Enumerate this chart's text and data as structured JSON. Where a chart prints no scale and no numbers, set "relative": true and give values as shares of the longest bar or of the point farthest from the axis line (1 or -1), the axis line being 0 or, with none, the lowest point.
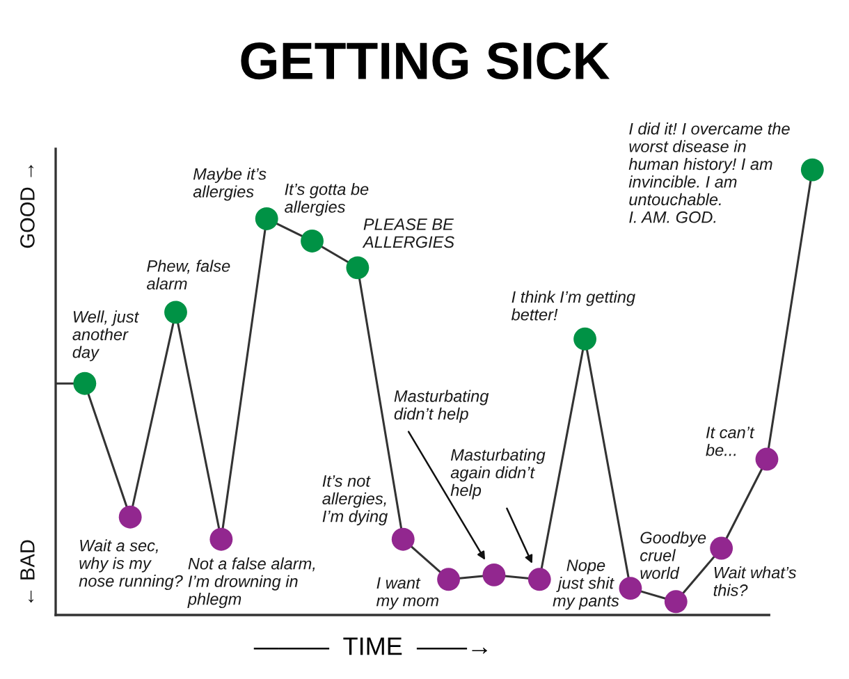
{
  "chart_data": {
    "type": "line",
    "title": "GETTING SICK",
    "xlabel": "———  TIME  ——→",
    "categories": [
      null,
      null,
      null,
      null,
      null,
      null,
      null,
      null,
      null,
      null,
      null,
      null,
      null,
      null,
      null,
      null,
      null
    ],
    "relative": true,
    "marker": "circle",
    "line_style": "solid",
    "series": [
      {
        "color": "#333333",
        "colors": [
          "#009245",
          "#92278f",
          "#009245",
          "#92278f",
          "#009245",
          "#009245",
          "#009245",
          "#92278f",
          "#92278f",
          "#92278f",
          "#92278f",
          "#009245",
          "#92278f",
          "#92278f",
          "#92278f",
          "#92278f",
          "#009245"
        ],
        "values": [
          0.52,
          0.22,
          0.68,
          0.17,
          0.89,
          0.84,
          0.78,
          0.17,
          0.08,
          0.09,
          0.08,
          0.62,
          0.06,
          0.03,
          0.15,
          0.35,
          1
        ]
      }
    ],
    "annotations": [
      "Well, just\nanother\nday",
      "Wait a sec,\nwhy is my\nnose running?",
      "Phew, false\nalarm",
      "Not a false alarm,\nI’m drowning in\nphlegm",
      "Maybe it’s\nallergies",
      "It’s gotta be\nallergies",
      "PLEASE BE\nALLERGIES",
      "It’s not\nallergies,\nI’m dying",
      "I want\nmy mom",
      "Masturbating\ndidn’t help",
      "Masturbating\nagain didn’t\nhelp",
      "I think I’m getting\nbetter!",
      "Nope\njust shit\nmy pants",
      "Goodbye\ncruel\nworld",
      "Wait what’s\nthis?",
      "It can’t\nbe...",
      "I did it! I overcame the\nworst disease in\nhuman history! I am\ninvincible. I am\nuntouchable.\nI. AM. GOD.",
      "GOOD →",
      "← BAD"
    ]
  }
}
